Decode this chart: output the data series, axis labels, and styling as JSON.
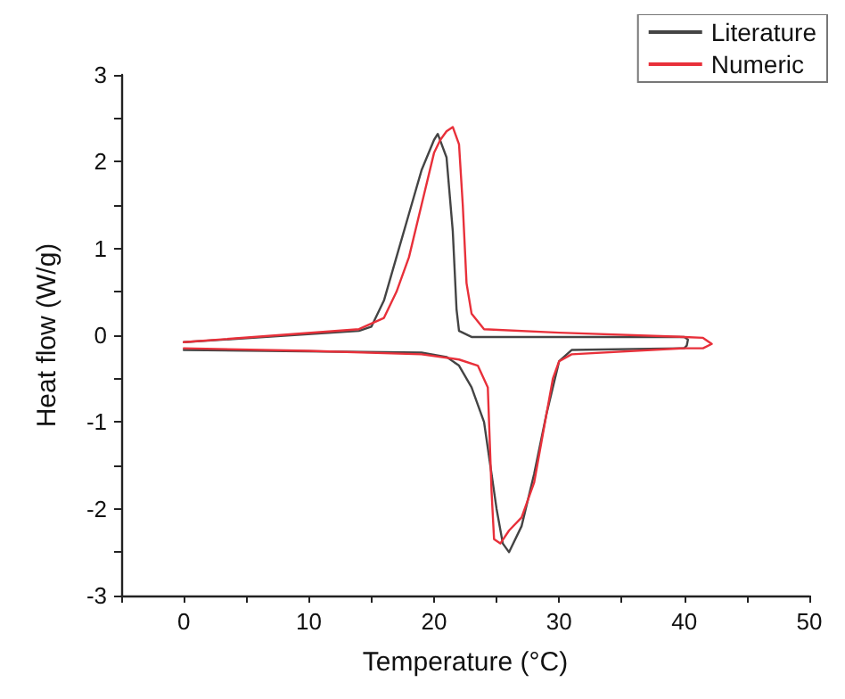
{
  "chart_data": {
    "type": "line",
    "xlabel": "Temperature (°C)",
    "ylabel": "Heat flow (W/g)",
    "xlim": [
      -5,
      50
    ],
    "ylim": [
      -3,
      3
    ],
    "xticks": [
      {
        "value": -5,
        "label": null
      },
      0,
      {
        "value": 5,
        "label": null
      },
      10,
      {
        "value": 15,
        "label": null
      },
      20,
      {
        "value": 25,
        "label": null
      },
      30,
      {
        "value": 35,
        "label": null
      },
      40,
      {
        "value": 45,
        "label": null
      },
      50
    ],
    "yticks": [
      -3,
      {
        "value": -2.5,
        "label": null
      },
      -2,
      {
        "value": -1.5,
        "label": null
      },
      -1,
      {
        "value": -0.5,
        "label": null
      },
      0,
      {
        "value": 0.5,
        "label": null
      },
      1,
      {
        "value": 1.5,
        "label": null
      },
      2,
      {
        "value": 2.5,
        "label": null
      },
      3
    ],
    "grid": false,
    "legend": "top right",
    "marker": "none",
    "line_style": "solid",
    "series": [
      {
        "name": "Literature",
        "color": "#444444",
        "x": [
          0,
          14,
          15,
          16,
          17,
          18,
          19,
          20,
          20.3,
          21,
          21.5,
          21.8,
          22,
          23,
          40,
          40.3,
          40.2,
          40,
          31,
          30,
          29,
          28,
          27,
          26,
          25.5,
          25,
          24.5,
          24,
          23,
          22,
          21,
          19,
          0
        ],
        "values": [
          -0.08,
          0.05,
          0.1,
          0.4,
          0.9,
          1.4,
          1.9,
          2.25,
          2.32,
          2.05,
          1.2,
          0.3,
          0.05,
          -0.02,
          -0.02,
          -0.05,
          -0.12,
          -0.15,
          -0.17,
          -0.3,
          -0.9,
          -1.6,
          -2.2,
          -2.5,
          -2.4,
          -2.0,
          -1.5,
          -1.0,
          -0.6,
          -0.35,
          -0.25,
          -0.2,
          -0.17
        ]
      },
      {
        "name": "Numeric",
        "color": "#e8303a",
        "x": [
          0,
          14,
          16,
          17,
          18,
          19,
          20,
          20.5,
          21,
          21.5,
          22,
          22.3,
          22.6,
          23,
          24,
          30,
          40,
          41.5,
          42.2,
          41.5,
          40,
          31,
          30,
          29.5,
          29,
          28,
          27,
          26,
          25.3,
          24.8,
          24.6,
          24.3,
          23.5,
          22,
          19,
          10,
          0
        ],
        "values": [
          -0.08,
          0.07,
          0.2,
          0.5,
          0.9,
          1.5,
          2.1,
          2.25,
          2.35,
          2.4,
          2.2,
          1.5,
          0.6,
          0.25,
          0.07,
          0.03,
          -0.02,
          -0.03,
          -0.1,
          -0.15,
          -0.15,
          -0.22,
          -0.3,
          -0.5,
          -0.9,
          -1.7,
          -2.1,
          -2.25,
          -2.4,
          -2.35,
          -1.8,
          -0.6,
          -0.35,
          -0.28,
          -0.22,
          -0.18,
          -0.15
        ]
      }
    ]
  }
}
